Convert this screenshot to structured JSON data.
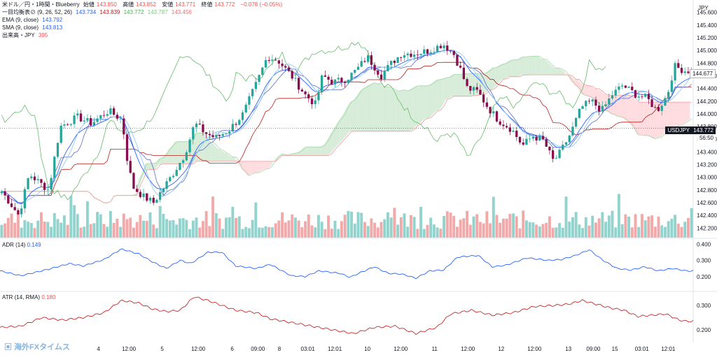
{
  "header": {
    "symbol": "米ドル／円・1時間・Blueberry",
    "open_label": "始値",
    "open": "143.850",
    "high_label": "高値",
    "high": "143.852",
    "low_label": "安値",
    "low": "143.771",
    "close_label": "終値",
    "close": "143.772",
    "change": "−0.078 (−0.05%)"
  },
  "indicators": {
    "ichimoku": {
      "label": "一目均衡表⊘ (9, 26, 52, 26)",
      "v1": "143.734",
      "v2": "143.839",
      "v3": "143.772",
      "v4": "143.787",
      "v5": "143.456"
    },
    "ema": {
      "label": "EMA (9, close)",
      "value": "143.792"
    },
    "sma": {
      "label": "SMA (9, close)",
      "value": "143.813"
    },
    "volume": {
      "label": "出来高・JPY",
      "value": "395"
    }
  },
  "adr_pane": {
    "label": "ADR (14)",
    "value": "0.149"
  },
  "atr_pane": {
    "label": "ATR (14, RMA)",
    "value": "0.180"
  },
  "currency": "JPY",
  "price_tags": {
    "symbol": "USDJPY",
    "current": "143.772",
    "countdown": "56:50",
    "last": "144.677"
  },
  "watermark": "海外FXタイムス",
  "colors": {
    "up": "#26a69a",
    "down": "#ef5350",
    "blue": "#2962ff",
    "green": "#4caf50",
    "red": "#b71c1c",
    "cloud_up": "#c8e6c9",
    "cloud_down": "#ffcdd2"
  },
  "chart_data": {
    "type": "candlestick",
    "title": "米ドル／円・1時間・Blueberry",
    "price_axis": {
      "ylim": [
        142.05,
        145.75
      ],
      "ticks": [
        "145.600",
        "145.400",
        "145.200",
        "145.000",
        "144.800",
        "144.600",
        "144.400",
        "144.200",
        "144.000",
        "143.800",
        "143.600",
        "143.400",
        "143.200",
        "143.000",
        "142.800",
        "142.600",
        "142.400",
        "142.200"
      ]
    },
    "x_ticks": [
      {
        "label": "4",
        "at": 0.142
      },
      {
        "label": "12:00",
        "at": 0.186
      },
      {
        "label": "5",
        "at": 0.234
      },
      {
        "label": "12:00",
        "at": 0.286
      },
      {
        "label": "6",
        "at": 0.335
      },
      {
        "label": "09:00",
        "at": 0.372
      },
      {
        "label": "8",
        "at": 0.403
      },
      {
        "label": "03:01",
        "at": 0.444
      },
      {
        "label": "12:01",
        "at": 0.483
      },
      {
        "label": "10",
        "at": 0.53
      },
      {
        "label": "12:00",
        "at": 0.578
      },
      {
        "label": "11",
        "at": 0.627
      },
      {
        "label": "12:00",
        "at": 0.675
      },
      {
        "label": "12",
        "at": 0.723
      },
      {
        "label": "12:00",
        "at": 0.771
      },
      {
        "label": "13",
        "at": 0.82
      },
      {
        "label": "09:00",
        "at": 0.856
      },
      {
        "label": "15",
        "at": 0.887
      },
      {
        "label": "03:01",
        "at": 0.926
      },
      {
        "label": "12:01",
        "at": 0.964
      }
    ],
    "close_path": [
      [
        0,
        142.78
      ],
      [
        0.025,
        142.4
      ],
      [
        0.04,
        143.05
      ],
      [
        0.068,
        142.8
      ],
      [
        0.085,
        143.8
      ],
      [
        0.11,
        143.95
      ],
      [
        0.13,
        143.85
      ],
      [
        0.155,
        144.05
      ],
      [
        0.175,
        143.9
      ],
      [
        0.18,
        143.4
      ],
      [
        0.19,
        142.85
      ],
      [
        0.205,
        142.7
      ],
      [
        0.22,
        142.6
      ],
      [
        0.245,
        143.0
      ],
      [
        0.265,
        143.35
      ],
      [
        0.28,
        143.85
      ],
      [
        0.295,
        143.7
      ],
      [
        0.31,
        143.62
      ],
      [
        0.33,
        143.75
      ],
      [
        0.35,
        144.0
      ],
      [
        0.37,
        144.5
      ],
      [
        0.385,
        144.9
      ],
      [
        0.4,
        144.85
      ],
      [
        0.42,
        144.6
      ],
      [
        0.44,
        144.3
      ],
      [
        0.455,
        144.15
      ],
      [
        0.465,
        144.6
      ],
      [
        0.48,
        144.5
      ],
      [
        0.5,
        144.55
      ],
      [
        0.515,
        144.7
      ],
      [
        0.53,
        144.9
      ],
      [
        0.55,
        144.6
      ],
      [
        0.565,
        144.8
      ],
      [
        0.58,
        144.95
      ],
      [
        0.6,
        144.95
      ],
      [
        0.62,
        145.0
      ],
      [
        0.64,
        145.1
      ],
      [
        0.655,
        144.95
      ],
      [
        0.665,
        144.7
      ],
      [
        0.675,
        144.4
      ],
      [
        0.69,
        144.35
      ],
      [
        0.705,
        144.1
      ],
      [
        0.72,
        143.9
      ],
      [
        0.74,
        143.75
      ],
      [
        0.755,
        143.5
      ],
      [
        0.77,
        143.65
      ],
      [
        0.785,
        143.58
      ],
      [
        0.8,
        143.25
      ],
      [
        0.81,
        143.4
      ],
      [
        0.825,
        143.7
      ],
      [
        0.84,
        144.1
      ],
      [
        0.855,
        144.2
      ],
      [
        0.87,
        144.05
      ],
      [
        0.885,
        144.3
      ],
      [
        0.9,
        144.45
      ],
      [
        0.92,
        144.3
      ],
      [
        0.935,
        144.25
      ],
      [
        0.95,
        144.05
      ],
      [
        0.965,
        144.3
      ],
      [
        0.975,
        144.75
      ],
      [
        0.99,
        144.68
      ]
    ],
    "series": [
      {
        "name": "Volume",
        "type": "bar",
        "ylim": [
          0,
          120
        ],
        "note": "hourly volume bars in lower portion of main pane"
      },
      {
        "name": "ADR (14)",
        "last": 0.149,
        "ylim": [
          0.13,
          0.41
        ],
        "ticks": [
          "0.400",
          "0.300",
          "0.200"
        ],
        "path": [
          [
            0,
            0.235
          ],
          [
            0.03,
            0.205
          ],
          [
            0.07,
            0.245
          ],
          [
            0.1,
            0.28
          ],
          [
            0.12,
            0.265
          ],
          [
            0.15,
            0.305
          ],
          [
            0.175,
            0.37
          ],
          [
            0.2,
            0.34
          ],
          [
            0.22,
            0.29
          ],
          [
            0.24,
            0.25
          ],
          [
            0.26,
            0.3
          ],
          [
            0.275,
            0.28
          ],
          [
            0.3,
            0.35
          ],
          [
            0.32,
            0.35
          ],
          [
            0.34,
            0.265
          ],
          [
            0.37,
            0.25
          ],
          [
            0.39,
            0.275
          ],
          [
            0.42,
            0.205
          ],
          [
            0.44,
            0.2
          ],
          [
            0.46,
            0.235
          ],
          [
            0.49,
            0.22
          ],
          [
            0.505,
            0.195
          ],
          [
            0.52,
            0.225
          ],
          [
            0.54,
            0.26
          ],
          [
            0.56,
            0.22
          ],
          [
            0.58,
            0.215
          ],
          [
            0.6,
            0.19
          ],
          [
            0.62,
            0.235
          ],
          [
            0.64,
            0.24
          ],
          [
            0.66,
            0.32
          ],
          [
            0.69,
            0.33
          ],
          [
            0.71,
            0.26
          ],
          [
            0.73,
            0.27
          ],
          [
            0.76,
            0.315
          ],
          [
            0.79,
            0.3
          ],
          [
            0.81,
            0.305
          ],
          [
            0.83,
            0.33
          ],
          [
            0.85,
            0.365
          ],
          [
            0.87,
            0.3
          ],
          [
            0.89,
            0.25
          ],
          [
            0.91,
            0.24
          ],
          [
            0.93,
            0.26
          ],
          [
            0.95,
            0.235
          ],
          [
            0.97,
            0.25
          ],
          [
            0.99,
            0.235
          ]
        ]
      },
      {
        "name": "ATR (14, RMA)",
        "last": 0.18,
        "ylim": [
          0.16,
          0.34
        ],
        "ticks": [
          "0.300",
          "0.200"
        ],
        "path": [
          [
            0,
            0.21
          ],
          [
            0.03,
            0.215
          ],
          [
            0.06,
            0.25
          ],
          [
            0.09,
            0.24
          ],
          [
            0.12,
            0.25
          ],
          [
            0.15,
            0.27
          ],
          [
            0.175,
            0.32
          ],
          [
            0.2,
            0.31
          ],
          [
            0.22,
            0.285
          ],
          [
            0.24,
            0.275
          ],
          [
            0.26,
            0.28
          ],
          [
            0.28,
            0.335
          ],
          [
            0.3,
            0.32
          ],
          [
            0.32,
            0.3
          ],
          [
            0.34,
            0.28
          ],
          [
            0.37,
            0.27
          ],
          [
            0.39,
            0.245
          ],
          [
            0.42,
            0.23
          ],
          [
            0.45,
            0.215
          ],
          [
            0.48,
            0.2
          ],
          [
            0.51,
            0.185
          ],
          [
            0.54,
            0.21
          ],
          [
            0.57,
            0.215
          ],
          [
            0.6,
            0.185
          ],
          [
            0.63,
            0.21
          ],
          [
            0.65,
            0.265
          ],
          [
            0.68,
            0.28
          ],
          [
            0.71,
            0.26
          ],
          [
            0.74,
            0.27
          ],
          [
            0.77,
            0.295
          ],
          [
            0.8,
            0.3
          ],
          [
            0.82,
            0.305
          ],
          [
            0.84,
            0.32
          ],
          [
            0.86,
            0.305
          ],
          [
            0.88,
            0.29
          ],
          [
            0.9,
            0.28
          ],
          [
            0.92,
            0.255
          ],
          [
            0.94,
            0.26
          ],
          [
            0.96,
            0.265
          ],
          [
            0.98,
            0.24
          ],
          [
            0.99,
            0.235
          ]
        ]
      }
    ]
  }
}
